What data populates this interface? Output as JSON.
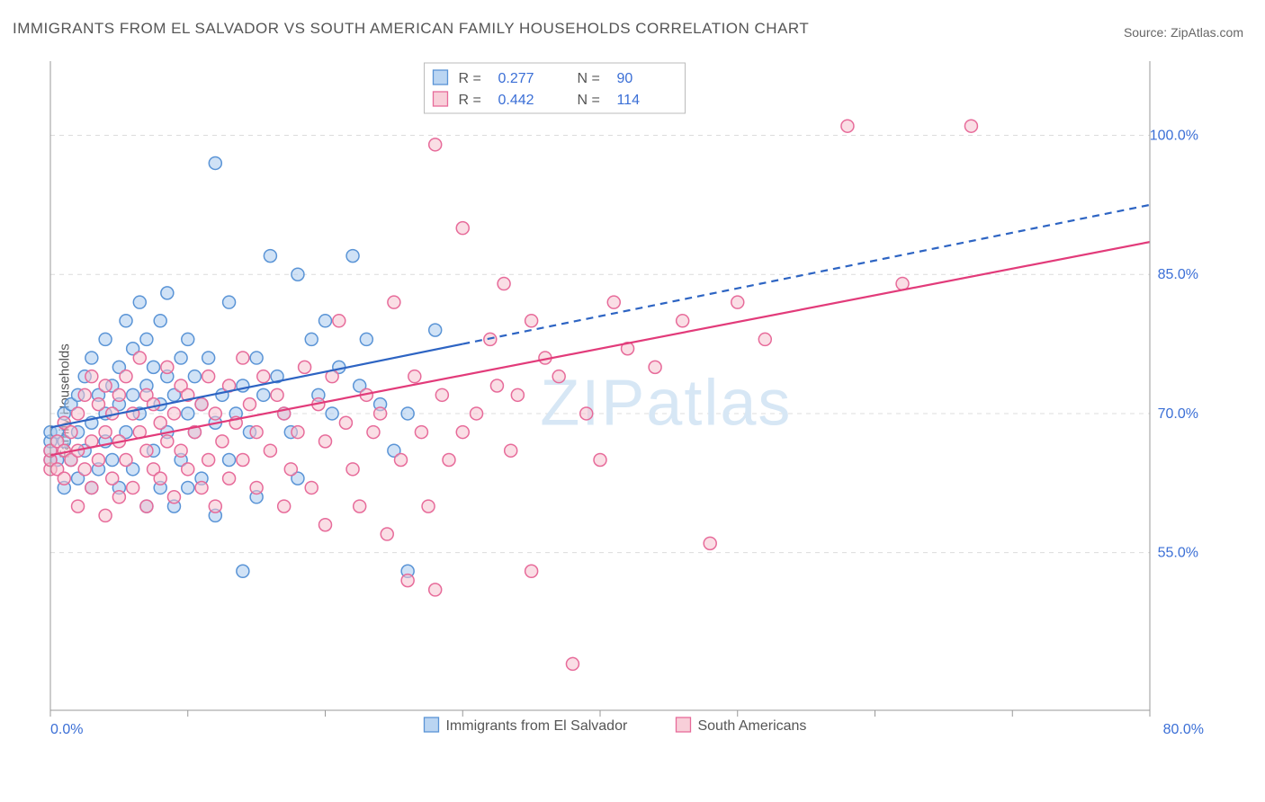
{
  "title": "IMMIGRANTS FROM EL SALVADOR VS SOUTH AMERICAN FAMILY HOUSEHOLDS CORRELATION CHART",
  "source_label": "Source: ",
  "source_name": "ZipAtlas.com",
  "ylabel": "Family Households",
  "watermark": "ZIPatlas",
  "chart": {
    "type": "scatter",
    "xlim": [
      0,
      80
    ],
    "ylim": [
      38,
      108
    ],
    "xtick_labels": [
      "0.0%",
      "80.0%"
    ],
    "xtick_positions_minor": [
      0,
      10,
      20,
      30,
      40,
      50,
      60,
      70,
      80
    ],
    "ytick_labels": [
      "55.0%",
      "70.0%",
      "85.0%",
      "100.0%"
    ],
    "ytick_positions": [
      55,
      70,
      85,
      100
    ],
    "grid_color": "#dcdcdc",
    "background_color": "#ffffff",
    "marker_radius": 7,
    "marker_stroke_width": 1.5,
    "series": [
      {
        "name": "Immigrants from El Salvador",
        "fill": "#a9cbef",
        "stroke": "#5a94d6",
        "fill_opacity": 0.55,
        "r": 0.277,
        "n": 90,
        "trend": {
          "x1": 0,
          "y1": 68.5,
          "x2": 30,
          "y2": 77.5,
          "x2_ext": 80,
          "y2_ext": 92.5,
          "color": "#2d64c3",
          "width": 2.2,
          "dash_after_x": 30
        },
        "points": [
          [
            0,
            65
          ],
          [
            0,
            66
          ],
          [
            0,
            67
          ],
          [
            0,
            68
          ],
          [
            0.5,
            65
          ],
          [
            0.5,
            68
          ],
          [
            1,
            62
          ],
          [
            1,
            67
          ],
          [
            1,
            70
          ],
          [
            1.5,
            65
          ],
          [
            1.5,
            71
          ],
          [
            2,
            63
          ],
          [
            2,
            68
          ],
          [
            2,
            72
          ],
          [
            2.5,
            66
          ],
          [
            2.5,
            74
          ],
          [
            3,
            62
          ],
          [
            3,
            69
          ],
          [
            3,
            76
          ],
          [
            3.5,
            64
          ],
          [
            3.5,
            72
          ],
          [
            4,
            67
          ],
          [
            4,
            70
          ],
          [
            4,
            78
          ],
          [
            4.5,
            65
          ],
          [
            4.5,
            73
          ],
          [
            5,
            62
          ],
          [
            5,
            71
          ],
          [
            5,
            75
          ],
          [
            5.5,
            68
          ],
          [
            5.5,
            80
          ],
          [
            6,
            64
          ],
          [
            6,
            72
          ],
          [
            6,
            77
          ],
          [
            6.5,
            70
          ],
          [
            6.5,
            82
          ],
          [
            7,
            60
          ],
          [
            7,
            73
          ],
          [
            7,
            78
          ],
          [
            7.5,
            66
          ],
          [
            7.5,
            75
          ],
          [
            8,
            62
          ],
          [
            8,
            71
          ],
          [
            8,
            80
          ],
          [
            8.5,
            68
          ],
          [
            8.5,
            74
          ],
          [
            8.5,
            83
          ],
          [
            9,
            60
          ],
          [
            9,
            72
          ],
          [
            9.5,
            65
          ],
          [
            9.5,
            76
          ],
          [
            10,
            62
          ],
          [
            10,
            70
          ],
          [
            10,
            78
          ],
          [
            10.5,
            68
          ],
          [
            10.5,
            74
          ],
          [
            11,
            63
          ],
          [
            11,
            71
          ],
          [
            11.5,
            76
          ],
          [
            12,
            59
          ],
          [
            12,
            69
          ],
          [
            12,
            97
          ],
          [
            12.5,
            72
          ],
          [
            13,
            65
          ],
          [
            13,
            82
          ],
          [
            13.5,
            70
          ],
          [
            14,
            73
          ],
          [
            14.5,
            68
          ],
          [
            15,
            61
          ],
          [
            15,
            76
          ],
          [
            15.5,
            72
          ],
          [
            16,
            87
          ],
          [
            16.5,
            74
          ],
          [
            17,
            70
          ],
          [
            17.5,
            68
          ],
          [
            18,
            85
          ],
          [
            18,
            63
          ],
          [
            19,
            78
          ],
          [
            19.5,
            72
          ],
          [
            20,
            80
          ],
          [
            20.5,
            70
          ],
          [
            21,
            75
          ],
          [
            22,
            87
          ],
          [
            22.5,
            73
          ],
          [
            23,
            78
          ],
          [
            24,
            71
          ],
          [
            25,
            66
          ],
          [
            26,
            53
          ],
          [
            26,
            70
          ],
          [
            28,
            79
          ],
          [
            14,
            53
          ]
        ]
      },
      {
        "name": "South Americans",
        "fill": "#f6c3d0",
        "stroke": "#e76b9a",
        "fill_opacity": 0.55,
        "r": 0.442,
        "n": 114,
        "trend": {
          "x1": 0,
          "y1": 65.5,
          "x2": 80,
          "y2": 88.5,
          "color": "#e23b7a",
          "width": 2.2
        },
        "points": [
          [
            0,
            64
          ],
          [
            0,
            65
          ],
          [
            0,
            66
          ],
          [
            0.5,
            64
          ],
          [
            0.5,
            67
          ],
          [
            1,
            63
          ],
          [
            1,
            66
          ],
          [
            1,
            69
          ],
          [
            1.5,
            65
          ],
          [
            1.5,
            68
          ],
          [
            2,
            60
          ],
          [
            2,
            66
          ],
          [
            2,
            70
          ],
          [
            2.5,
            64
          ],
          [
            2.5,
            72
          ],
          [
            3,
            62
          ],
          [
            3,
            67
          ],
          [
            3,
            74
          ],
          [
            3.5,
            65
          ],
          [
            3.5,
            71
          ],
          [
            4,
            59
          ],
          [
            4,
            68
          ],
          [
            4,
            73
          ],
          [
            4.5,
            63
          ],
          [
            4.5,
            70
          ],
          [
            5,
            61
          ],
          [
            5,
            67
          ],
          [
            5,
            72
          ],
          [
            5.5,
            65
          ],
          [
            5.5,
            74
          ],
          [
            6,
            62
          ],
          [
            6,
            70
          ],
          [
            6.5,
            68
          ],
          [
            6.5,
            76
          ],
          [
            7,
            60
          ],
          [
            7,
            66
          ],
          [
            7,
            72
          ],
          [
            7.5,
            64
          ],
          [
            7.5,
            71
          ],
          [
            8,
            63
          ],
          [
            8,
            69
          ],
          [
            8.5,
            67
          ],
          [
            8.5,
            75
          ],
          [
            9,
            61
          ],
          [
            9,
            70
          ],
          [
            9.5,
            66
          ],
          [
            9.5,
            73
          ],
          [
            10,
            64
          ],
          [
            10,
            72
          ],
          [
            10.5,
            68
          ],
          [
            11,
            62
          ],
          [
            11,
            71
          ],
          [
            11.5,
            65
          ],
          [
            11.5,
            74
          ],
          [
            12,
            60
          ],
          [
            12,
            70
          ],
          [
            12.5,
            67
          ],
          [
            13,
            63
          ],
          [
            13,
            73
          ],
          [
            13.5,
            69
          ],
          [
            14,
            65
          ],
          [
            14,
            76
          ],
          [
            14.5,
            71
          ],
          [
            15,
            62
          ],
          [
            15,
            68
          ],
          [
            15.5,
            74
          ],
          [
            16,
            66
          ],
          [
            16.5,
            72
          ],
          [
            17,
            60
          ],
          [
            17,
            70
          ],
          [
            17.5,
            64
          ],
          [
            18,
            68
          ],
          [
            18.5,
            75
          ],
          [
            19,
            62
          ],
          [
            19.5,
            71
          ],
          [
            20,
            58
          ],
          [
            20,
            67
          ],
          [
            20.5,
            74
          ],
          [
            21,
            80
          ],
          [
            21.5,
            69
          ],
          [
            22,
            64
          ],
          [
            22.5,
            60
          ],
          [
            23,
            72
          ],
          [
            23.5,
            68
          ],
          [
            24,
            70
          ],
          [
            24.5,
            57
          ],
          [
            25,
            82
          ],
          [
            25.5,
            65
          ],
          [
            26,
            52
          ],
          [
            26.5,
            74
          ],
          [
            27,
            68
          ],
          [
            27.5,
            60
          ],
          [
            28,
            51
          ],
          [
            28,
            99
          ],
          [
            28.5,
            72
          ],
          [
            29,
            65
          ],
          [
            30,
            68
          ],
          [
            30,
            90
          ],
          [
            31,
            70
          ],
          [
            32,
            78
          ],
          [
            32.5,
            73
          ],
          [
            33,
            84
          ],
          [
            33.5,
            66
          ],
          [
            34,
            72
          ],
          [
            35,
            80
          ],
          [
            35,
            53
          ],
          [
            36,
            76
          ],
          [
            37,
            74
          ],
          [
            38,
            43
          ],
          [
            39,
            70
          ],
          [
            40,
            65
          ],
          [
            41,
            82
          ],
          [
            42,
            77
          ],
          [
            44,
            75
          ],
          [
            46,
            80
          ],
          [
            48,
            56
          ],
          [
            50,
            82
          ],
          [
            52,
            78
          ],
          [
            58,
            101
          ],
          [
            62,
            84
          ],
          [
            67,
            101
          ]
        ]
      }
    ],
    "stats_legend": {
      "r_label": "R  =",
      "n_label": "N  =",
      "swatch_size": 16
    },
    "bottom_legend_swatch_size": 16
  }
}
